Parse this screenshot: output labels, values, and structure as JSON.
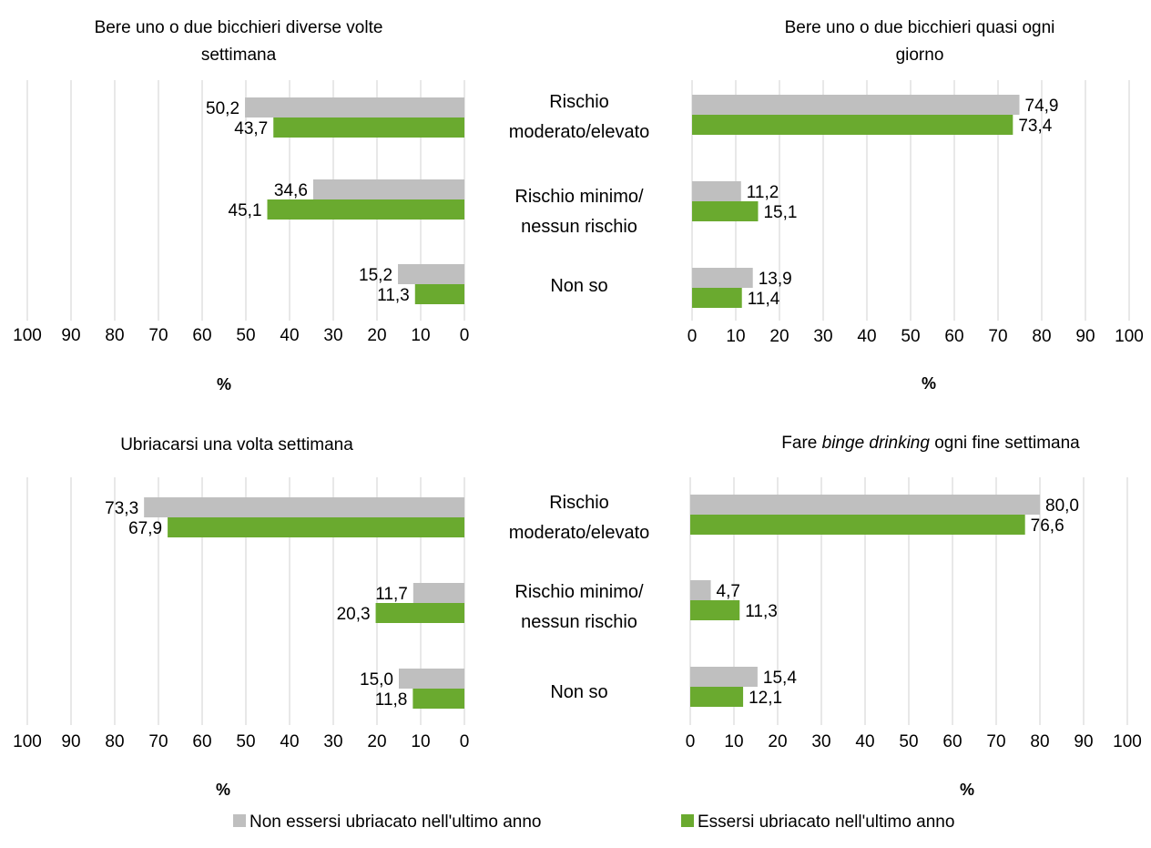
{
  "categories": [
    [
      "Rischio",
      "moderato/elevato"
    ],
    [
      "Rischio minimo/",
      "nessun rischio"
    ],
    [
      "Non so"
    ]
  ],
  "legend": [
    {
      "name": "Non essersi ubriacato nell'ultimo anno",
      "color": "#bfbfbf"
    },
    {
      "name": "Essersi ubriacato nell'ultimo anno",
      "color": "#6aaa2f"
    }
  ],
  "chart_data": [
    {
      "type": "bar",
      "title": [
        "Bere uno o due bicchieri diverse volte",
        "settimana"
      ],
      "orientation": "horizontal",
      "x_direction": "reversed",
      "xlabel": "%",
      "xlim": [
        0,
        100
      ],
      "ticks": [
        100,
        90,
        80,
        70,
        60,
        50,
        40,
        30,
        20,
        10,
        0
      ],
      "series": [
        {
          "name": "Non essersi ubriacato nell'ultimo anno",
          "values": [
            50.2,
            34.6,
            15.2
          ],
          "labels": [
            "50,2",
            "34,6",
            "15,2"
          ]
        },
        {
          "name": "Essersi ubriacato nell'ultimo anno",
          "values": [
            43.7,
            45.1,
            11.3
          ],
          "labels": [
            "43,7",
            "45,1",
            "11,3"
          ]
        }
      ]
    },
    {
      "type": "bar",
      "title": [
        "Bere uno o due bicchieri quasi ogni",
        "giorno"
      ],
      "orientation": "horizontal",
      "x_direction": "normal",
      "xlabel": "%",
      "xlim": [
        0,
        100
      ],
      "ticks": [
        0,
        10,
        20,
        30,
        40,
        50,
        60,
        70,
        80,
        90,
        100
      ],
      "series": [
        {
          "name": "Non essersi ubriacato nell'ultimo anno",
          "values": [
            74.9,
            11.2,
            13.9
          ],
          "labels": [
            "74,9",
            "11,2",
            "13,9"
          ]
        },
        {
          "name": "Essersi ubriacato nell'ultimo anno",
          "values": [
            73.4,
            15.1,
            11.4
          ],
          "labels": [
            "73,4",
            "15,1",
            "11,4"
          ]
        }
      ]
    },
    {
      "type": "bar",
      "title": [
        "Ubriacarsi una volta settimana"
      ],
      "orientation": "horizontal",
      "x_direction": "reversed",
      "xlabel": "%",
      "xlim": [
        0,
        100
      ],
      "ticks": [
        100,
        90,
        80,
        70,
        60,
        50,
        40,
        30,
        20,
        10,
        0
      ],
      "series": [
        {
          "name": "Non essersi ubriacato nell'ultimo anno",
          "values": [
            73.3,
            11.7,
            15.0
          ],
          "labels": [
            "73,3",
            "11,7",
            "15,0"
          ]
        },
        {
          "name": "Essersi ubriacato nell'ultimo anno",
          "values": [
            67.9,
            20.3,
            11.8
          ],
          "labels": [
            "67,9",
            "20,3",
            "11,8"
          ]
        }
      ]
    },
    {
      "type": "bar",
      "title_parts": [
        {
          "text": "Fare ",
          "italic": false
        },
        {
          "text": "binge drinking",
          "italic": true
        },
        {
          "text": " ogni fine settimana",
          "italic": false
        }
      ],
      "orientation": "horizontal",
      "x_direction": "normal",
      "xlabel": "%",
      "xlim": [
        0,
        100
      ],
      "ticks": [
        0,
        10,
        20,
        30,
        40,
        50,
        60,
        70,
        80,
        90,
        100
      ],
      "series": [
        {
          "name": "Non essersi ubriacato nell'ultimo anno",
          "values": [
            80.0,
            4.7,
            15.4
          ],
          "labels": [
            "80,0",
            "4,7",
            "15,4"
          ]
        },
        {
          "name": "Essersi ubriacato nell'ultimo anno",
          "values": [
            76.6,
            11.3,
            12.1
          ],
          "labels": [
            "76,6",
            "11,3",
            "12,1"
          ]
        }
      ]
    }
  ]
}
